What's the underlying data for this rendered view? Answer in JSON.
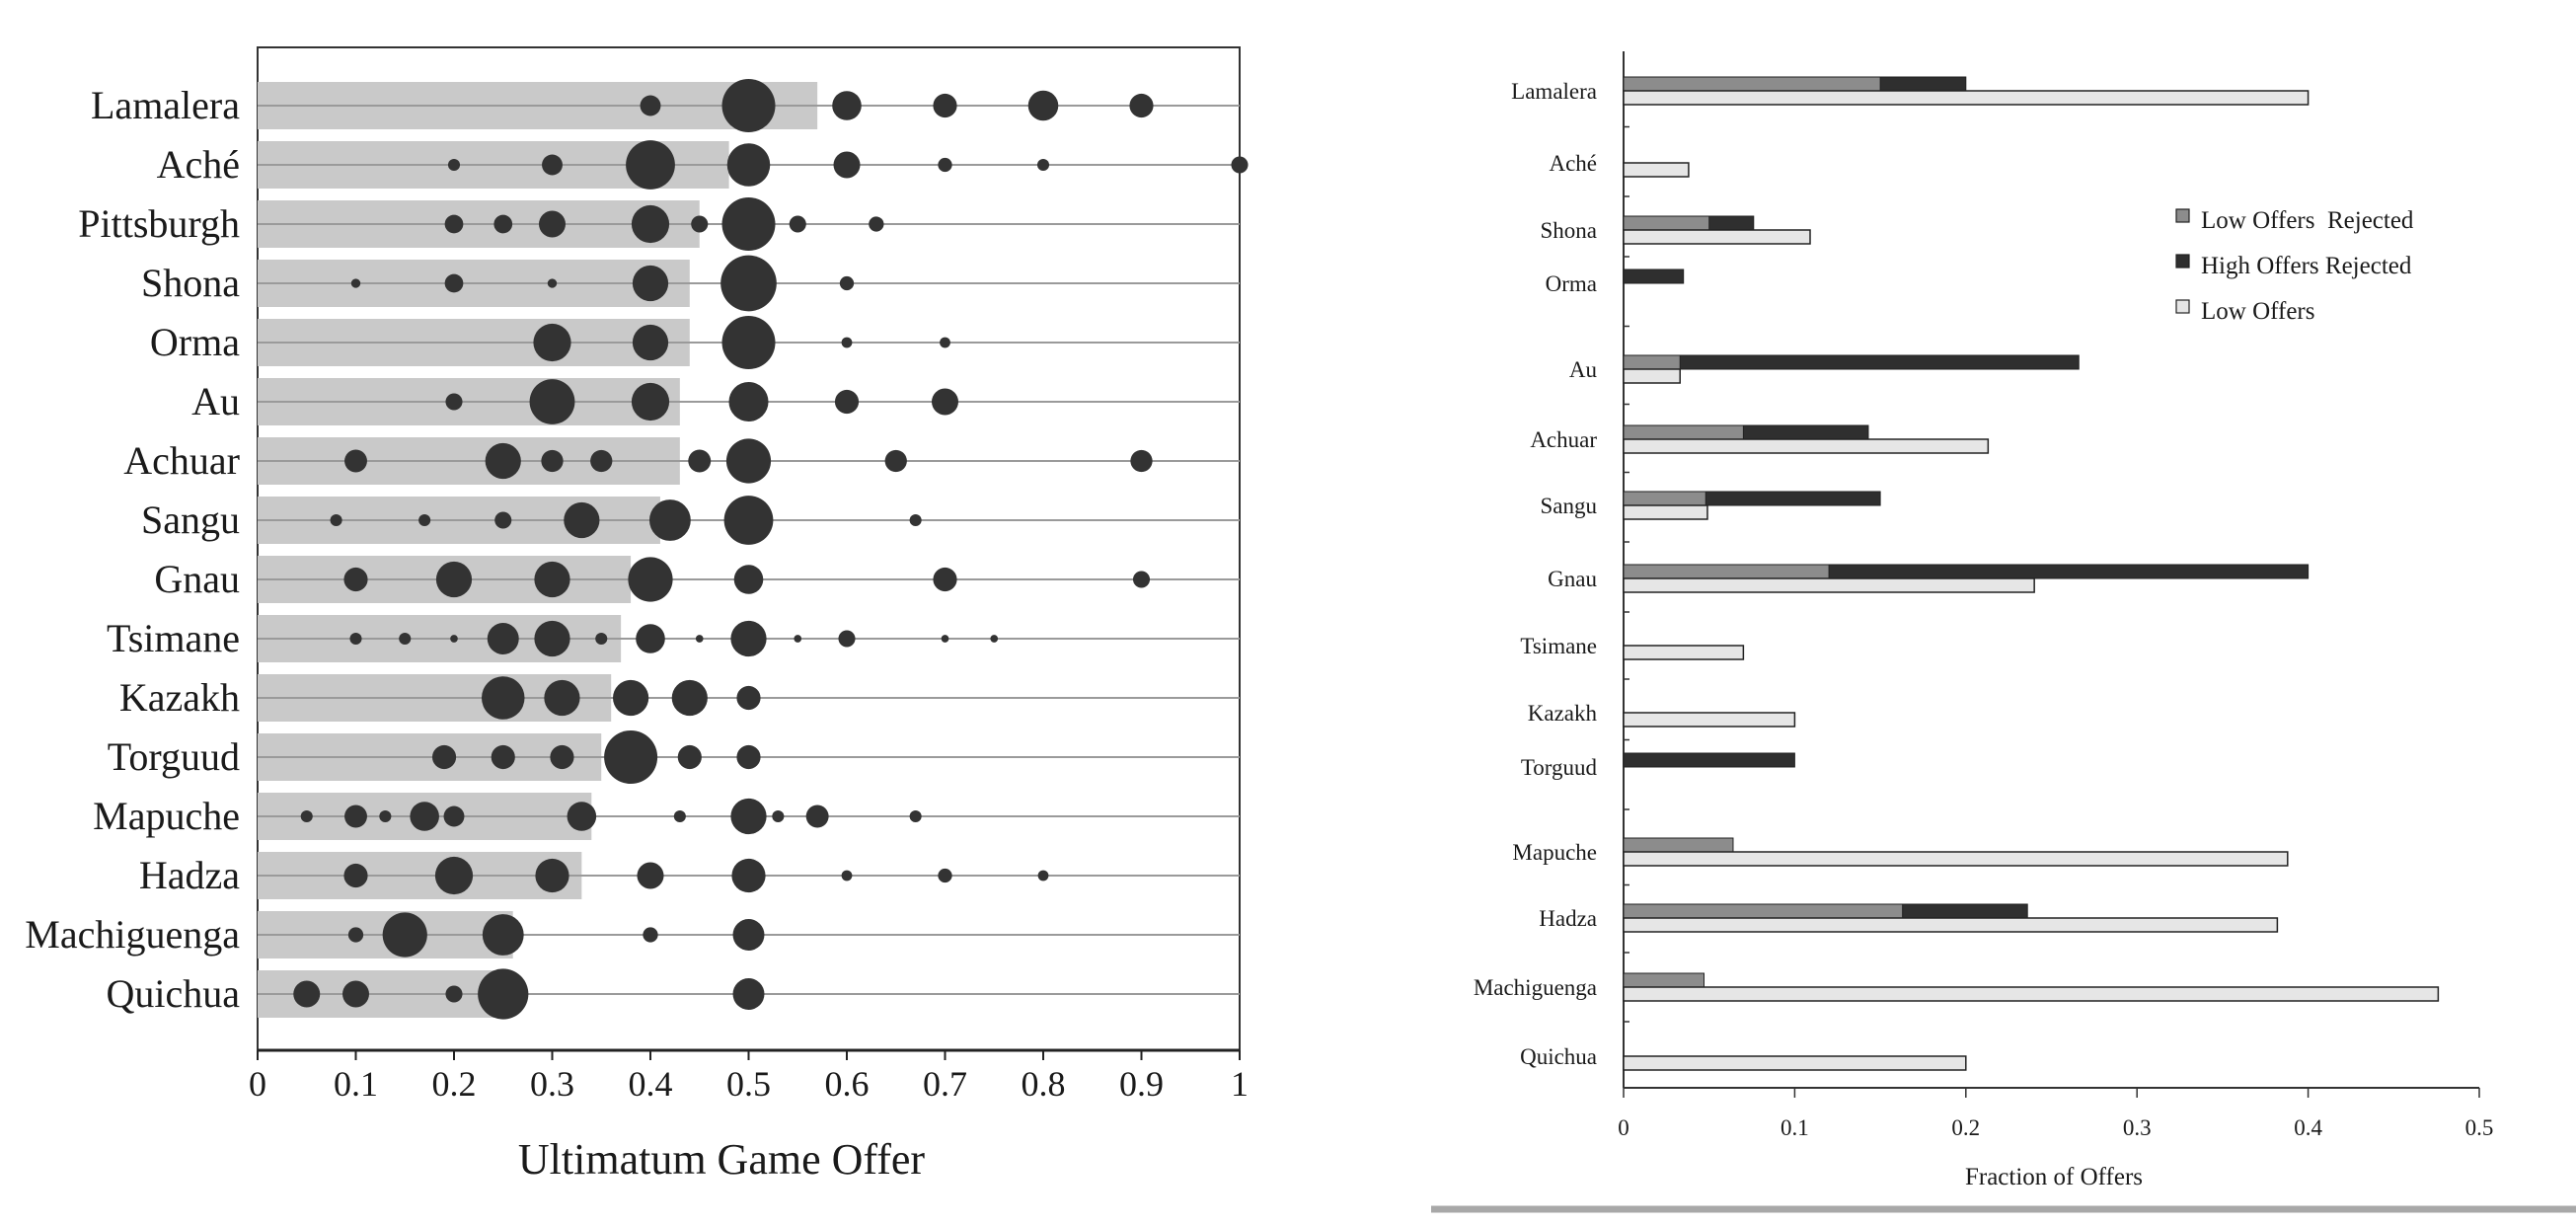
{
  "chart_data": [
    {
      "type": "scatter",
      "xlabel": "Ultimatum Game Offer",
      "ylabel": "",
      "xlim": [
        0,
        1
      ],
      "xticks": [
        "0",
        "0.1",
        "0.2",
        "0.3",
        "0.4",
        "0.5",
        "0.6",
        "0.7",
        "0.8",
        "0.9",
        "1"
      ],
      "bar_color": "#c9c9c9",
      "dot_color": "#333333",
      "groups": [
        {
          "name": "Lamalera",
          "mean": 0.57,
          "points": [
            [
              0.4,
              0.15
            ],
            [
              0.5,
              1
            ],
            [
              0.6,
              0.3
            ],
            [
              0.7,
              0.2
            ],
            [
              0.8,
              0.32
            ],
            [
              0.9,
              0.2
            ]
          ]
        },
        {
          "name": "Aché",
          "mean": 0.48,
          "points": [
            [
              0.2,
              0.05
            ],
            [
              0.3,
              0.15
            ],
            [
              0.4,
              0.85
            ],
            [
              0.5,
              0.65
            ],
            [
              0.6,
              0.25
            ],
            [
              0.7,
              0.07
            ],
            [
              0.8,
              0.05
            ],
            [
              1.0,
              0.1
            ]
          ]
        },
        {
          "name": "Pittsburgh",
          "mean": 0.45,
          "points": [
            [
              0.2,
              0.12
            ],
            [
              0.25,
              0.12
            ],
            [
              0.3,
              0.25
            ],
            [
              0.4,
              0.5
            ],
            [
              0.45,
              0.1
            ],
            [
              0.5,
              1
            ],
            [
              0.55,
              0.1
            ],
            [
              0.63,
              0.08
            ]
          ]
        },
        {
          "name": "Shona",
          "mean": 0.44,
          "points": [
            [
              0.1,
              0.03
            ],
            [
              0.2,
              0.12
            ],
            [
              0.3,
              0.03
            ],
            [
              0.4,
              0.45
            ],
            [
              0.5,
              1.1
            ],
            [
              0.6,
              0.07
            ]
          ]
        },
        {
          "name": "Orma",
          "mean": 0.44,
          "points": [
            [
              0.3,
              0.5
            ],
            [
              0.4,
              0.45
            ],
            [
              0.5,
              1
            ],
            [
              0.6,
              0.04
            ],
            [
              0.7,
              0.04
            ]
          ]
        },
        {
          "name": "Au",
          "mean": 0.43,
          "points": [
            [
              0.2,
              0.1
            ],
            [
              0.3,
              0.72
            ],
            [
              0.4,
              0.5
            ],
            [
              0.5,
              0.55
            ],
            [
              0.6,
              0.2
            ],
            [
              0.7,
              0.25
            ]
          ]
        },
        {
          "name": "Achuar",
          "mean": 0.43,
          "points": [
            [
              0.1,
              0.18
            ],
            [
              0.25,
              0.45
            ],
            [
              0.3,
              0.17
            ],
            [
              0.35,
              0.17
            ],
            [
              0.45,
              0.18
            ],
            [
              0.5,
              0.7
            ],
            [
              0.65,
              0.17
            ],
            [
              0.9,
              0.17
            ]
          ]
        },
        {
          "name": "Sangu",
          "mean": 0.41,
          "points": [
            [
              0.08,
              0.05
            ],
            [
              0.17,
              0.05
            ],
            [
              0.25,
              0.1
            ],
            [
              0.33,
              0.45
            ],
            [
              0.42,
              0.6
            ],
            [
              0.5,
              0.85
            ],
            [
              0.67,
              0.05
            ]
          ]
        },
        {
          "name": "Gnau",
          "mean": 0.38,
          "points": [
            [
              0.1,
              0.2
            ],
            [
              0.2,
              0.45
            ],
            [
              0.3,
              0.45
            ],
            [
              0.4,
              0.7
            ],
            [
              0.5,
              0.3
            ],
            [
              0.7,
              0.2
            ],
            [
              0.9,
              0.1
            ]
          ]
        },
        {
          "name": "Tsimane",
          "mean": 0.37,
          "points": [
            [
              0.1,
              0.05
            ],
            [
              0.15,
              0.05
            ],
            [
              0.2,
              0.02
            ],
            [
              0.25,
              0.35
            ],
            [
              0.3,
              0.45
            ],
            [
              0.35,
              0.05
            ],
            [
              0.4,
              0.3
            ],
            [
              0.45,
              0.02
            ],
            [
              0.5,
              0.45
            ],
            [
              0.55,
              0.02
            ],
            [
              0.6,
              0.1
            ],
            [
              0.7,
              0.02
            ],
            [
              0.75,
              0.02
            ]
          ]
        },
        {
          "name": "Kazakh",
          "mean": 0.36,
          "points": [
            [
              0.25,
              0.65
            ],
            [
              0.31,
              0.45
            ],
            [
              0.38,
              0.45
            ],
            [
              0.44,
              0.45
            ],
            [
              0.5,
              0.2
            ]
          ]
        },
        {
          "name": "Torguud",
          "mean": 0.35,
          "points": [
            [
              0.19,
              0.2
            ],
            [
              0.25,
              0.2
            ],
            [
              0.31,
              0.2
            ],
            [
              0.38,
              1
            ],
            [
              0.44,
              0.2
            ],
            [
              0.5,
              0.2
            ]
          ]
        },
        {
          "name": "Mapuche",
          "mean": 0.34,
          "points": [
            [
              0.05,
              0.05
            ],
            [
              0.1,
              0.18
            ],
            [
              0.13,
              0.05
            ],
            [
              0.17,
              0.3
            ],
            [
              0.2,
              0.15
            ],
            [
              0.33,
              0.3
            ],
            [
              0.43,
              0.05
            ],
            [
              0.5,
              0.45
            ],
            [
              0.53,
              0.05
            ],
            [
              0.57,
              0.18
            ],
            [
              0.67,
              0.05
            ]
          ]
        },
        {
          "name": "Hadza",
          "mean": 0.33,
          "points": [
            [
              0.1,
              0.2
            ],
            [
              0.2,
              0.5
            ],
            [
              0.3,
              0.4
            ],
            [
              0.4,
              0.25
            ],
            [
              0.5,
              0.4
            ],
            [
              0.6,
              0.04
            ],
            [
              0.7,
              0.07
            ],
            [
              0.8,
              0.04
            ]
          ]
        },
        {
          "name": "Machiguenga",
          "mean": 0.26,
          "points": [
            [
              0.1,
              0.08
            ],
            [
              0.15,
              0.7
            ],
            [
              0.25,
              0.6
            ],
            [
              0.4,
              0.08
            ],
            [
              0.5,
              0.35
            ]
          ]
        },
        {
          "name": "Quichua",
          "mean": 0.25,
          "points": [
            [
              0.05,
              0.25
            ],
            [
              0.1,
              0.25
            ],
            [
              0.2,
              0.1
            ],
            [
              0.25,
              0.9
            ],
            [
              0.5,
              0.35
            ]
          ]
        }
      ]
    },
    {
      "type": "bar",
      "orientation": "horizontal",
      "xlabel": "Fraction of Offers",
      "ylabel": "",
      "xlim": [
        0,
        0.5
      ],
      "xticks": [
        "0",
        "0.1",
        "0.2",
        "0.3",
        "0.4",
        "0.5"
      ],
      "legend_position": "top-right",
      "categories": [
        "Lamalera",
        "Aché",
        "Shona",
        "Orma",
        "Au",
        "Achuar",
        "Sangu",
        "Gnau",
        "Tsimane",
        "Kazakh",
        "Torguud",
        "Mapuche",
        "Hadza",
        "Machiguenga",
        "Quichua"
      ],
      "series": [
        {
          "name": "Low Offers  Rejected",
          "color": "#8c8c8c",
          "values": [
            0.15,
            null,
            0.05,
            null,
            0.033,
            0.07,
            0.048,
            0.12,
            null,
            null,
            null,
            0.064,
            0.163,
            0.047,
            null
          ]
        },
        {
          "name": "High Offers Rejected",
          "color": "#2f2f2f",
          "values": [
            0.2,
            null,
            0.076,
            0.035,
            0.266,
            0.143,
            0.15,
            0.4,
            null,
            null,
            0.1,
            null,
            0.236,
            null,
            null
          ]
        },
        {
          "name": "Low Offers",
          "color": "#e6e6e6",
          "values": [
            0.4,
            0.038,
            0.109,
            null,
            0.033,
            0.213,
            0.049,
            0.24,
            0.07,
            0.1,
            null,
            0.388,
            0.382,
            0.476,
            0.2
          ]
        }
      ]
    }
  ]
}
